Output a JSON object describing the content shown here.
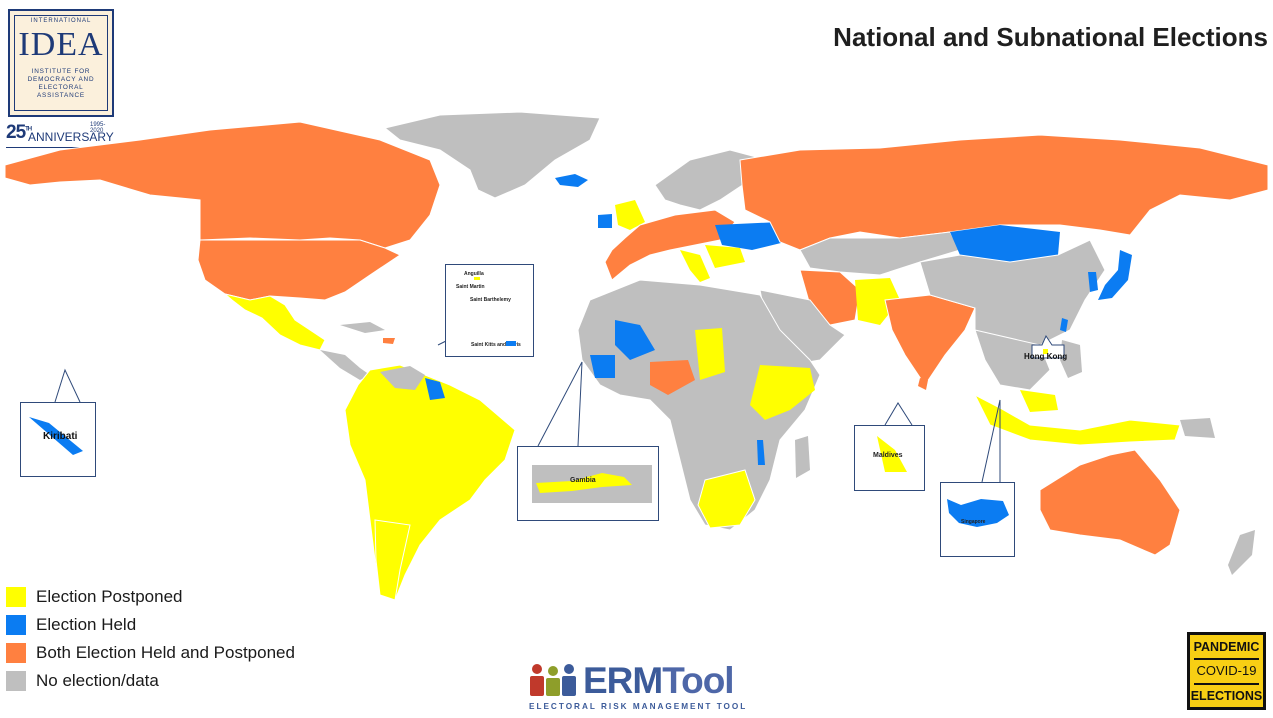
{
  "title": "National and Subnational Elections",
  "logo": {
    "top_text": "INTERNATIONAL",
    "mark": "IDEA",
    "sub_lines": [
      "INSTITUTE FOR",
      "DEMOCRACY AND",
      "ELECTORAL",
      "ASSISTANCE"
    ],
    "anniversary_number": "25",
    "anniversary_suffix": "TH",
    "anniversary_word": "ANNIVERSARY",
    "anniversary_years": "1995-2020"
  },
  "legend": [
    {
      "label": "Election Postponed",
      "color": "#ffff00"
    },
    {
      "label": "Election Held",
      "color": "#0b7cf2"
    },
    {
      "label": "Both Election Held and Postponed",
      "color": "#ff8040"
    },
    {
      "label": "No election/data",
      "color": "#bfbfbf"
    }
  ],
  "map_labels": {
    "hong_kong": "Hong Kong"
  },
  "insets": {
    "kiribati": "Kiribati",
    "gambia": "Gambia",
    "maldives": "Maldives",
    "singapore": "Singapore",
    "caribbean": [
      "Anguilla",
      "Saint Martin",
      "Saint Barthelemy",
      "Saint Kitts and Nevis"
    ]
  },
  "erm": {
    "name_a": "ERM",
    "name_b": "Tool",
    "tagline": "ELECTORAL RISK MANAGEMENT TOOL"
  },
  "badge": [
    "PANDEMIC",
    "COVID-19",
    "ELECTIONS"
  ]
}
